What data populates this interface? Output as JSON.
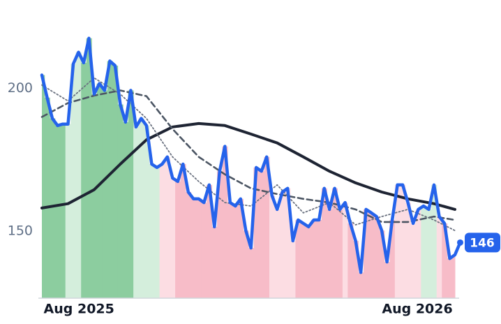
{
  "chart_data": {
    "type": "line",
    "xlim": [
      0,
      79
    ],
    "ylim": [
      126.5,
      231
    ],
    "yticks": [
      150,
      200
    ],
    "xticks": [
      {
        "value": 7.1,
        "label": "Aug 2025"
      },
      {
        "value": 71.8,
        "label": "Aug 2026"
      }
    ],
    "bands": [
      {
        "from": 0,
        "to": 5,
        "color": "#8ccd9f"
      },
      {
        "from": 5,
        "to": 8,
        "color": "#d4eedc"
      },
      {
        "from": 8,
        "to": 17.4,
        "color": "#8ccd9f"
      },
      {
        "from": 17.4,
        "to": 22.4,
        "color": "#d4eedc"
      },
      {
        "from": 22.4,
        "to": 26,
        "color": "#fcdde3"
      },
      {
        "from": 26,
        "to": 43.6,
        "color": "#f7bcc8"
      },
      {
        "from": 43.6,
        "to": 48.5,
        "color": "#fcdde3"
      },
      {
        "from": 48.5,
        "to": 57.8,
        "color": "#f7bcc8"
      },
      {
        "from": 57.8,
        "to": 59,
        "color": "#fcdde3"
      },
      {
        "from": 59,
        "to": 67.8,
        "color": "#f7bcc8"
      },
      {
        "from": 67.8,
        "to": 72.8,
        "color": "#fcdde3"
      },
      {
        "from": 72.8,
        "to": 75.4,
        "color": "#d4eedc"
      },
      {
        "from": 75.4,
        "to": 77,
        "color": "#fcdde3"
      },
      {
        "from": 77,
        "to": 80,
        "color": "#f7bcc8"
      }
    ],
    "series": [
      {
        "color": "#2563eb",
        "values": [
          204.7,
          196.8,
          189.5,
          187,
          187.5,
          187.5,
          208.6,
          212.7,
          209,
          217.6,
          198,
          201.7,
          199.3,
          209.6,
          208,
          194.4,
          188.2,
          199.3,
          186.5,
          189.5,
          187,
          173.5,
          172.3,
          173.5,
          176,
          168.6,
          167.4,
          173.5,
          163.7,
          161.3,
          161.3,
          160,
          166.2,
          151.5,
          171,
          179.7,
          160,
          158.8,
          161.3,
          150.2,
          144.1,
          172.3,
          171,
          176,
          162.5,
          157.6,
          163.7,
          165,
          146.6,
          153.9,
          152.7,
          151.5,
          153.9,
          153.9,
          165,
          157.6,
          165,
          157.6,
          160,
          152.7,
          146.6,
          135.5,
          157.6,
          156.4,
          155.1,
          150.2,
          139.2,
          153.9,
          166.2,
          166.2,
          160,
          152.7,
          157.6,
          158.8,
          157.6,
          166.2,
          155.1,
          152.7,
          140.4,
          141.7,
          146
        ]
      },
      {
        "color": "#1e2433",
        "style": "solid",
        "x": [
          0,
          5,
          10,
          15,
          20,
          25,
          30,
          35,
          40,
          45,
          50,
          55,
          60,
          65,
          70,
          75,
          79
        ],
        "values": [
          158.1,
          159.6,
          164.5,
          173.5,
          182,
          186.5,
          187.7,
          187,
          184,
          180.9,
          176,
          171,
          166.9,
          163.7,
          161.3,
          159.6,
          157.6
        ]
      },
      {
        "color": "#4b5563",
        "style": "dashed",
        "x": [
          0,
          5,
          10,
          15,
          20,
          25,
          30,
          35,
          40,
          45,
          50,
          55,
          60,
          65,
          70,
          75,
          79
        ],
        "values": [
          190,
          194.9,
          197.5,
          199.3,
          197.3,
          185.8,
          176,
          169.9,
          165,
          163,
          161.3,
          160,
          157.6,
          153.2,
          153.2,
          155.1,
          153.9
        ]
      },
      {
        "color": "#6b7280",
        "style": "dotted",
        "x": [
          0,
          5,
          10,
          15,
          20,
          25,
          30,
          35,
          40,
          45,
          50,
          55,
          60,
          65,
          70,
          75,
          79
        ],
        "values": [
          201.2,
          195.6,
          203.7,
          198,
          189.5,
          176,
          167.4,
          160,
          158.8,
          166.2,
          156.4,
          160,
          152.2,
          155.1,
          157.6,
          153.9,
          150.2
        ]
      }
    ]
  }
}
